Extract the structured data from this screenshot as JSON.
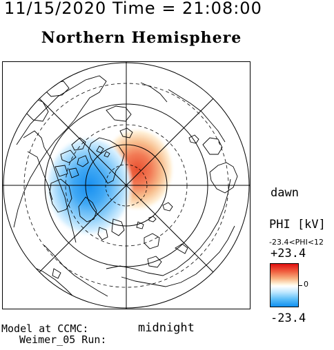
{
  "header": {
    "datetime": "11/15/2020 Time = 21:08:00"
  },
  "plot": {
    "title": "Northern Hemisphere",
    "label_dawn": "dawn",
    "label_midnight": "midnight"
  },
  "colorbar": {
    "title": "PHI [kV]",
    "range_text": "-23.4<PHI<12",
    "max_label": "+23.4",
    "zero_label": "0",
    "min_label": "-23.4",
    "colors": {
      "positive": "#e01010",
      "neutral": "#ffffff",
      "negative": "#1090f0"
    }
  },
  "footer": {
    "model": "Model at CCMC:",
    "run": "Weimer_05 Run:"
  }
}
